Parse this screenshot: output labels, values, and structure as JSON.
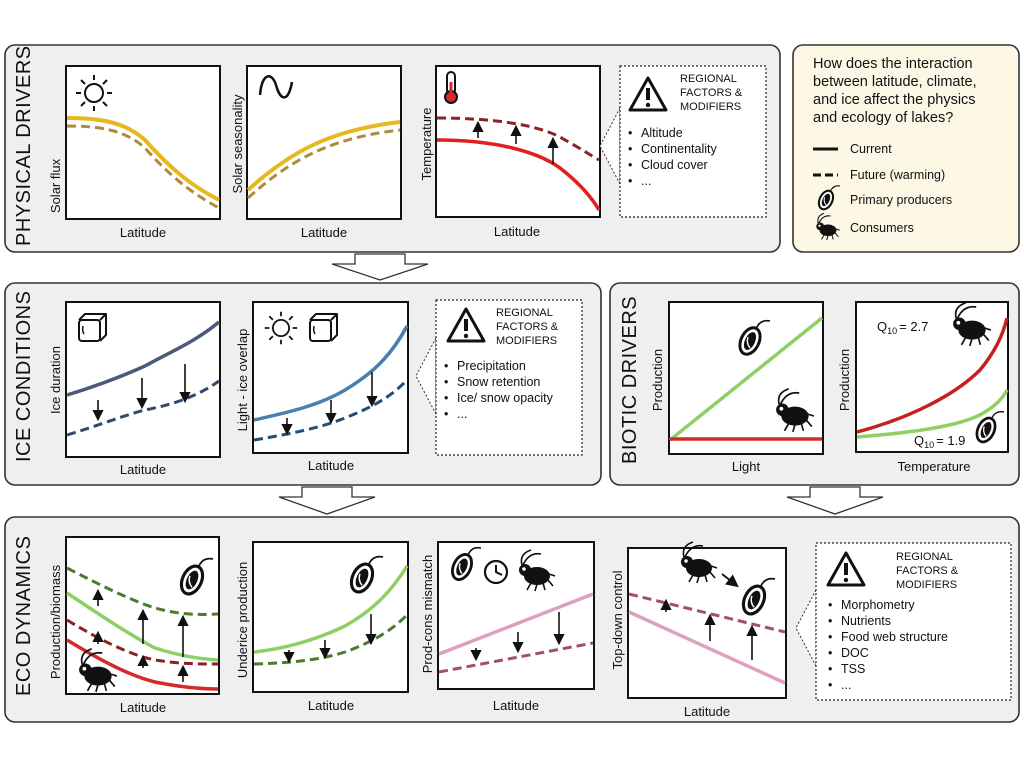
{
  "colors": {
    "gold": "#e6b820",
    "gold_dark": "#b08a3c",
    "red": "#d42a2a",
    "red_dark": "#8b2226",
    "slate": "#4a5a78",
    "slate_dark": "#30486a",
    "blue": "#4a7fb0",
    "blue_dark": "#1f4e79",
    "green": "#8ed065",
    "green_dark": "#4f7a2e",
    "pink": "#dea0c0",
    "pink_dark": "#a0506e",
    "section_bg": "#efefef",
    "legend_bg": "#fdf7e6"
  },
  "sections": {
    "physical": "PHYSICAL DRIVERS",
    "ice": "ICE CONDITIONS",
    "biotic": "BIOTIC DRIVERS",
    "eco": "ECO DYNAMICS"
  },
  "panels": {
    "solar_flux": {
      "ylabel": "Solar flux",
      "xlabel": "Latitude",
      "icon": "sun-icon"
    },
    "solar_seasonality": {
      "ylabel": "Solar seasonality",
      "xlabel": "Latitude",
      "icon": "sine-wave-icon"
    },
    "temperature": {
      "ylabel": "Temperature",
      "xlabel": "Latitude",
      "icon": "thermometer-icon"
    },
    "ice_duration": {
      "ylabel": "Ice duration",
      "xlabel": "Latitude",
      "icon": "ice-cube-icon"
    },
    "light_ice_overlap": {
      "ylabel": "Light - ice overlap",
      "xlabel": "Latitude",
      "icon": "sun-ice-icon"
    },
    "prod_light": {
      "ylabel": "Production",
      "xlabel": "Light"
    },
    "prod_temp": {
      "ylabel": "Production",
      "xlabel": "Temperature",
      "q10_consumers": "Q",
      "q10_sub": "10",
      "q10_consumers_val": "= 2.7",
      "q10_producers_val": "= 1.9"
    },
    "prod_biomass": {
      "ylabel": "Production/biomass",
      "xlabel": "Latitude"
    },
    "underice": {
      "ylabel": "Underice production",
      "xlabel": "Latitude"
    },
    "mismatch": {
      "ylabel": "Prod-cons mismatch",
      "xlabel": "Latitude",
      "icon": "clock-icon"
    },
    "topdown": {
      "ylabel": "Top-down control",
      "xlabel": "Latitude"
    }
  },
  "regional": {
    "title_lines": [
      "REGIONAL",
      "FACTORS &",
      "MODIFIERS"
    ],
    "physical_items": [
      "Altitude",
      "Continentality",
      "Cloud cover",
      "..."
    ],
    "ice_items": [
      "Precipitation",
      "Snow retention",
      "Ice/ snow opacity",
      "..."
    ],
    "eco_items": [
      "Morphometry",
      "Nutrients",
      "Food web structure",
      "DOC",
      "TSS",
      "..."
    ]
  },
  "legend": {
    "question_lines": [
      "How does the interaction",
      "between latitude, climate,",
      "and ice affect the physics",
      "and ecology of lakes?"
    ],
    "current": "Current",
    "future": "Future (warming)",
    "producers": "Primary producers",
    "consumers": "Consumers"
  },
  "bullet": "•"
}
